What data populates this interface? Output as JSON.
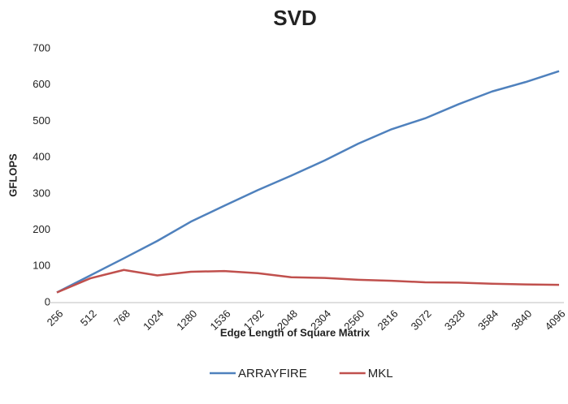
{
  "chart_data": {
    "type": "line",
    "title": "SVD",
    "x_label": "Edge Length of Square Matrix",
    "y_label": "GFLOPS",
    "categories": [
      "256",
      "512",
      "768",
      "1024",
      "1280",
      "1536",
      "1792",
      "2048",
      "2304",
      "2560",
      "2816",
      "3072",
      "3328",
      "3584",
      "3840",
      "4096"
    ],
    "series": [
      {
        "name": "ARRAYFIRE",
        "color": "#4f81bd",
        "values": [
          28,
          75,
          122,
          170,
          223,
          267,
          310,
          350,
          392,
          438,
          478,
          508,
          547,
          582,
          608,
          638
        ]
      },
      {
        "name": "MKL",
        "color": "#c0504d",
        "values": [
          28,
          67,
          90,
          75,
          85,
          87,
          81,
          70,
          68,
          63,
          60,
          56,
          55,
          52,
          50,
          49
        ]
      }
    ],
    "ylim": [
      0,
      700
    ],
    "yticks": [
      0,
      100,
      200,
      300,
      400,
      500,
      600,
      700
    ],
    "grid": false,
    "legend": "bottom"
  }
}
